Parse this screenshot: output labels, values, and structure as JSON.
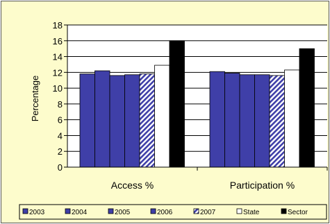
{
  "chart_data": {
    "type": "bar",
    "title": "",
    "xlabel": "",
    "ylabel": "Percentage",
    "ylim": [
      0,
      18
    ],
    "yticks": [
      0,
      2,
      4,
      6,
      8,
      10,
      12,
      14,
      16,
      18
    ],
    "grid": true,
    "legend_position": "bottom",
    "categories": [
      "Access %",
      "Participation %"
    ],
    "series": [
      {
        "name": "2003",
        "values": [
          11.8,
          12.1
        ]
      },
      {
        "name": "2004",
        "values": [
          12.2,
          11.9
        ]
      },
      {
        "name": "2005",
        "values": [
          11.6,
          11.7
        ]
      },
      {
        "name": "2006",
        "values": [
          11.7,
          11.7
        ]
      },
      {
        "name": "2007",
        "values": [
          11.8,
          11.6
        ]
      },
      {
        "name": "State",
        "values": [
          12.9,
          12.3
        ]
      },
      {
        "name": "Sector",
        "values": [
          16.0,
          15.0
        ]
      }
    ],
    "series_styles": [
      {
        "fill": "#3f3fa8",
        "pattern": "solid"
      },
      {
        "fill": "#3f3fa8",
        "pattern": "solid"
      },
      {
        "fill": "#3f3fa8",
        "pattern": "solid"
      },
      {
        "fill": "#3f3fa8",
        "pattern": "solid"
      },
      {
        "fill": "#3f3fa8",
        "pattern": "diagonal-stripes"
      },
      {
        "fill": "#ffffff",
        "pattern": "solid"
      },
      {
        "fill": "#000000",
        "pattern": "solid"
      }
    ],
    "colors": {
      "background": "#fdfccc",
      "plot": "#ffffff",
      "bar_blue": "#3f3fa8"
    }
  }
}
